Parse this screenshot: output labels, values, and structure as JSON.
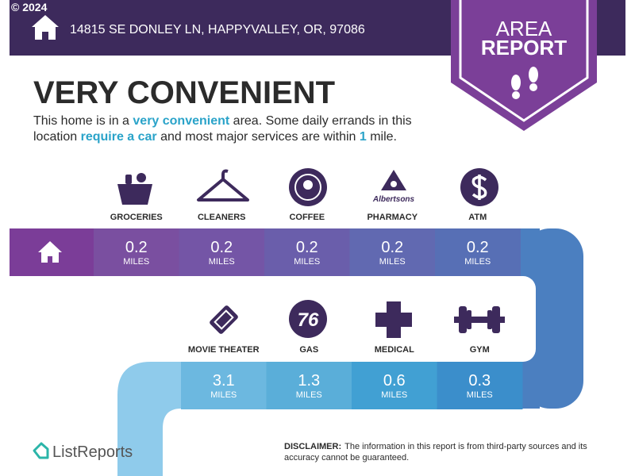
{
  "copyright": "© 2024",
  "address": "14815 SE DONLEY LN, HAPPYVALLEY, OR, 97086",
  "badge": {
    "lines": [
      "AREA",
      "REPORT"
    ]
  },
  "headline": "VERY CONVENIENT",
  "summary": [
    [
      {
        "text": "This home is in a ",
        "em": false
      },
      {
        "text": "very convenient",
        "em": true
      },
      {
        "text": " area. Some daily errands in this",
        "em": false
      }
    ],
    [
      {
        "text": "location ",
        "em": false
      },
      {
        "text": "require a car",
        "em": true
      },
      {
        "text": " and most major services are within ",
        "em": false
      },
      {
        "text": "1",
        "em": true
      },
      {
        "text": " mile.",
        "em": false
      }
    ]
  ],
  "rows": [
    [
      {
        "label": "GROCERIES",
        "distance": 0.2,
        "unit": "MILES"
      },
      {
        "label": "CLEANERS",
        "distance": 0.2,
        "unit": "MILES"
      },
      {
        "label": "COFFEE",
        "distance": 0.2,
        "unit": "MILES"
      },
      {
        "label": "PHARMACY",
        "distance": 0.2,
        "unit": "MILES"
      },
      {
        "label": "ATM",
        "distance": 0.2,
        "unit": "MILES"
      }
    ],
    [
      {
        "label": "MOVIE THEATER",
        "distance": 3.1,
        "unit": "MILES"
      },
      {
        "label": "GAS",
        "distance": 1.3,
        "unit": "MILES"
      },
      {
        "label": "MEDICAL",
        "distance": 0.6,
        "unit": "MILES"
      },
      {
        "label": "GYM",
        "distance": 0.3,
        "unit": "MILES"
      }
    ]
  ],
  "logos": {
    "pharmacy": "Albertsons",
    "gas": "76"
  },
  "brand": "ListReports",
  "disclaimer": {
    "label": "DISCLAIMER:",
    "lines": [
      "The information in this report is from third-party sources and its",
      "accuracy cannot be guaranteed."
    ]
  }
}
